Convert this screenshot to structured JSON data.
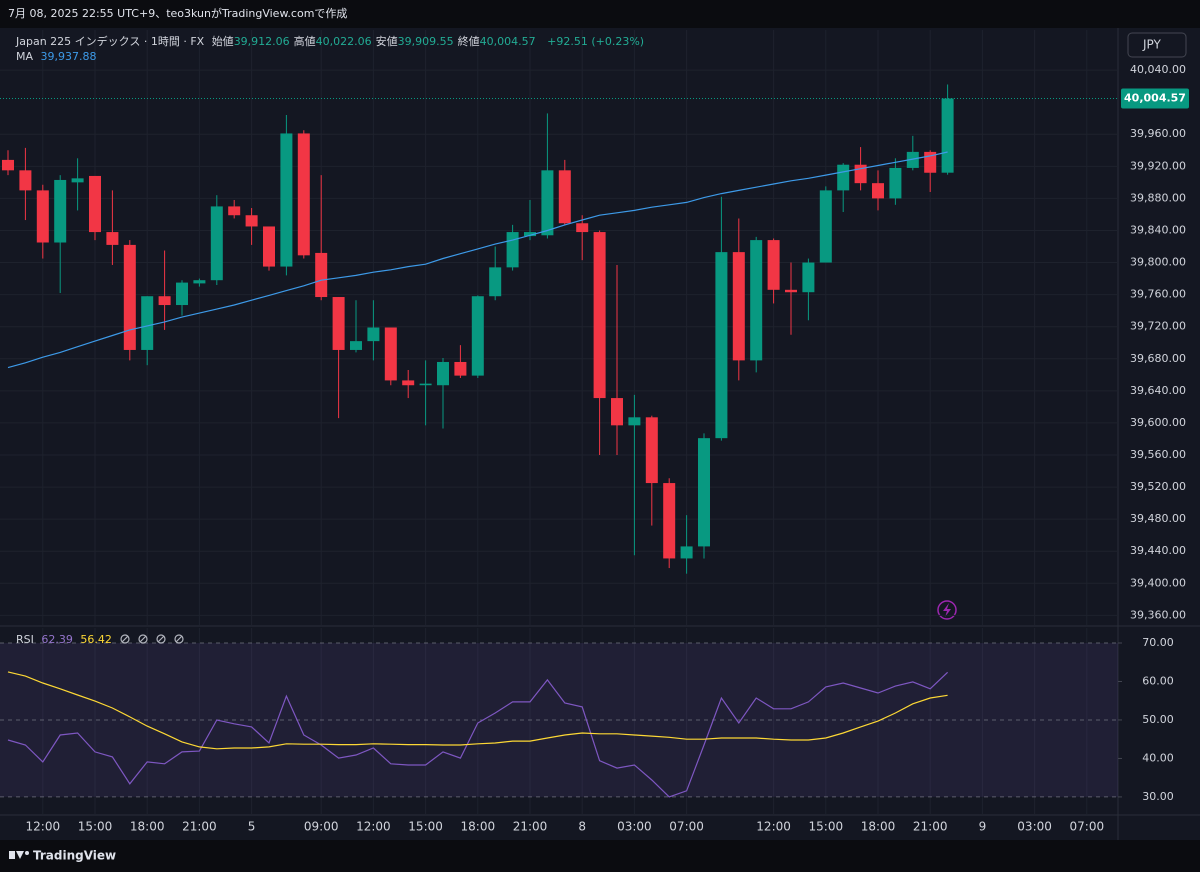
{
  "header": {
    "caption": "7月 08, 2025 22:55 UTC+9、teo3kunがTradingView.comで作成"
  },
  "footer": {
    "brand": "TradingView"
  },
  "currency_button": "JPY",
  "chart_data": [
    {
      "type": "candlestick",
      "title": "Japan 225 インデックス · 1時間 · FX",
      "ohlc_legend": [
        {
          "label": "始値",
          "value": "39,912.06"
        },
        {
          "label": "高値",
          "value": "40,022.06"
        },
        {
          "label": "安値",
          "value": "39,909.55"
        },
        {
          "label": "終値",
          "value": "40,004.57"
        }
      ],
      "change": "+92.51 (+0.23%)",
      "last_price_label": "40,004.57",
      "up_color": "#089981",
      "down_color": "#f23645",
      "categories": [
        null,
        null,
        "12:00",
        null,
        null,
        "15:00",
        null,
        null,
        "18:00",
        null,
        null,
        "21:00",
        null,
        null,
        "5",
        null,
        null,
        null,
        "09:00",
        null,
        null,
        "12:00",
        null,
        null,
        "15:00",
        null,
        null,
        "18:00",
        null,
        null,
        "21:00",
        null,
        null,
        "8",
        null,
        null,
        "03:00",
        null,
        null,
        "07:00",
        null,
        null,
        null,
        null,
        "12:00",
        null,
        null,
        "15:00",
        null,
        null,
        "18:00",
        null,
        null,
        "21:00",
        null,
        null,
        "9",
        null,
        null,
        "03:00",
        null,
        null,
        "07:00"
      ],
      "open": [
        39928,
        39915,
        39890,
        39825,
        39900,
        39908,
        39838,
        39822,
        39691,
        39758,
        39747,
        39774,
        39778,
        39870,
        39859,
        39845,
        39795,
        39961,
        39812,
        39757,
        39691,
        39702,
        39719,
        39653,
        39647,
        39647,
        39676,
        39659,
        39758,
        39794,
        39833,
        39834,
        39915,
        39849,
        39838,
        39631,
        39597,
        39607,
        39525,
        39431,
        39446,
        39581,
        39813,
        39678,
        39828,
        39766,
        39763,
        39800,
        39890,
        39922,
        39899,
        39880,
        39918,
        39938,
        39912.06,
        null,
        null,
        null,
        null,
        null,
        null,
        null,
        null
      ],
      "high": [
        39940,
        39943,
        39897,
        39909,
        39930,
        39908,
        39890,
        39828,
        39758,
        39815,
        39778,
        39780,
        39884,
        39878,
        39868,
        39845,
        39984,
        39965,
        39909,
        39757,
        39753,
        39753,
        39719,
        39666,
        39678,
        39681,
        39697,
        39759,
        39820,
        39847,
        39878,
        39986,
        39928,
        39859,
        39840,
        39797,
        39635,
        39609,
        39531,
        39485,
        39587,
        39882,
        39855,
        39832,
        39830,
        39800,
        39805,
        39895,
        39924,
        39944,
        39915,
        39930,
        39958,
        39940,
        40022.06,
        null,
        null,
        null,
        null,
        null,
        null,
        null,
        null
      ],
      "low": [
        39909,
        39853,
        39805,
        39762,
        39865,
        39828,
        39797,
        39678,
        39672,
        39716,
        39734,
        39770,
        39772,
        39855,
        39822,
        39790,
        39784,
        39805,
        39753,
        39606,
        39688,
        39678,
        39647,
        39631,
        39597,
        39593,
        39656,
        39656,
        39753,
        39790,
        39828,
        39830,
        39847,
        39803,
        39560,
        39560,
        39435,
        39472,
        39419,
        39412,
        39431,
        39578,
        39653,
        39663,
        39749,
        39710,
        39728,
        39800,
        39863,
        39890,
        39865,
        39872,
        39915,
        39888,
        39909.55,
        null,
        null,
        null,
        null,
        null,
        null,
        null,
        null
      ],
      "close": [
        39915,
        39890,
        39825,
        39903,
        39905,
        39838,
        39822,
        39691,
        39758,
        39747,
        39775,
        39778,
        39870,
        39859,
        39845,
        39795,
        39961,
        39809,
        39757,
        39691,
        39702,
        39719,
        39653,
        39647,
        39649,
        39676,
        39659,
        39758,
        39794,
        39838,
        39838,
        39915,
        39849,
        39838,
        39631,
        39597,
        39607,
        39525,
        39431,
        39446,
        39581,
        39813,
        39678,
        39828,
        39766,
        39763,
        39800,
        39890,
        39922,
        39899,
        39880,
        39918,
        39938,
        39912,
        40004.57,
        null,
        null,
        null,
        null,
        null,
        null,
        null,
        null
      ],
      "overlays": [
        {
          "name": "MA",
          "legend_value": "39,937.88",
          "color": "#3d9ae8",
          "values": [
            39669,
            39675,
            39682,
            39688,
            39695,
            39702,
            39709,
            39716,
            39721,
            39726,
            39732,
            39737,
            39742,
            39747,
            39753,
            39759,
            39765,
            39771,
            39778,
            39781,
            39784,
            39788,
            39791,
            39795,
            39798,
            39805,
            39811,
            39817,
            39823,
            39828,
            39834,
            39840,
            39847,
            39853,
            39859,
            39862,
            39865,
            39869,
            39872,
            39875,
            39881,
            39886,
            39890,
            39894,
            39898,
            39902,
            39905,
            39909,
            39913,
            39917,
            39921,
            39925,
            39929,
            39933,
            39937.88,
            null,
            null,
            null,
            null,
            null,
            null,
            null,
            null
          ]
        }
      ],
      "ylim": [
        39348,
        40090
      ],
      "yticks": [
        {
          "value": 40040,
          "label": "40,040.00"
        },
        {
          "value": 39960,
          "label": "39,960.00"
        },
        {
          "value": 39920,
          "label": "39,920.00"
        },
        {
          "value": 39880,
          "label": "39,880.00"
        },
        {
          "value": 39840,
          "label": "39,840.00"
        },
        {
          "value": 39800,
          "label": "39,800.00"
        },
        {
          "value": 39760,
          "label": "39,760.00"
        },
        {
          "value": 39720,
          "label": "39,720.00"
        },
        {
          "value": 39680,
          "label": "39,680.00"
        },
        {
          "value": 39640,
          "label": "39,640.00"
        },
        {
          "value": 39600,
          "label": "39,600.00"
        },
        {
          "value": 39560,
          "label": "39,560.00"
        },
        {
          "value": 39520,
          "label": "39,520.00"
        },
        {
          "value": 39480,
          "label": "39,480.00"
        },
        {
          "value": 39440,
          "label": "39,440.00"
        },
        {
          "value": 39400,
          "label": "39,400.00"
        },
        {
          "value": 39360,
          "label": "39,360.00"
        }
      ],
      "grid": true
    },
    {
      "type": "line",
      "title": "RSI",
      "series": [
        {
          "legend_value": "62.39",
          "color": "#7e57c2",
          "values": [
            44.8,
            43.5,
            39.1,
            46.1,
            46.6,
            41.7,
            40.4,
            33.4,
            39.1,
            38.6,
            41.7,
            41.9,
            50.0,
            49.0,
            48.2,
            44.0,
            56.2,
            46.1,
            43.5,
            40.1,
            40.9,
            42.7,
            38.6,
            38.3,
            38.3,
            41.7,
            40.1,
            49.2,
            51.8,
            54.7,
            54.7,
            60.4,
            54.4,
            53.4,
            39.4,
            37.5,
            38.3,
            34.4,
            30.0,
            31.6,
            43.5,
            55.7,
            49.2,
            55.7,
            52.9,
            52.9,
            54.7,
            58.6,
            59.6,
            58.3,
            57.0,
            58.8,
            59.9,
            58.1,
            62.39,
            null,
            null,
            null,
            null,
            null,
            null,
            null,
            null
          ]
        },
        {
          "legend_value": "56.42",
          "color": "#fdd835",
          "values": [
            62.5,
            61.4,
            59.6,
            58.1,
            56.5,
            54.9,
            53.1,
            50.8,
            48.4,
            46.4,
            44.3,
            43.0,
            42.5,
            42.7,
            42.7,
            43.0,
            43.8,
            43.7,
            43.7,
            43.6,
            43.6,
            43.8,
            43.7,
            43.6,
            43.6,
            43.5,
            43.5,
            43.8,
            44.0,
            44.5,
            44.5,
            45.3,
            46.1,
            46.6,
            46.4,
            46.4,
            46.1,
            45.8,
            45.5,
            45.0,
            45.0,
            45.3,
            45.3,
            45.3,
            45.0,
            44.8,
            44.8,
            45.3,
            46.6,
            48.2,
            49.7,
            51.8,
            54.2,
            55.7,
            56.42,
            null,
            null,
            null,
            null,
            null,
            null,
            null,
            null
          ]
        }
      ],
      "levels": [
        30,
        50,
        70
      ],
      "band_color": "#7e57c2",
      "ylim": [
        25.3,
        73.9
      ],
      "yticks": [
        {
          "value": 70,
          "label": "70.00"
        },
        {
          "value": 60,
          "label": "60.00"
        },
        {
          "value": 50,
          "label": "50.00"
        },
        {
          "value": 40,
          "label": "40.00"
        },
        {
          "value": 30,
          "label": "30.00"
        }
      ]
    }
  ]
}
